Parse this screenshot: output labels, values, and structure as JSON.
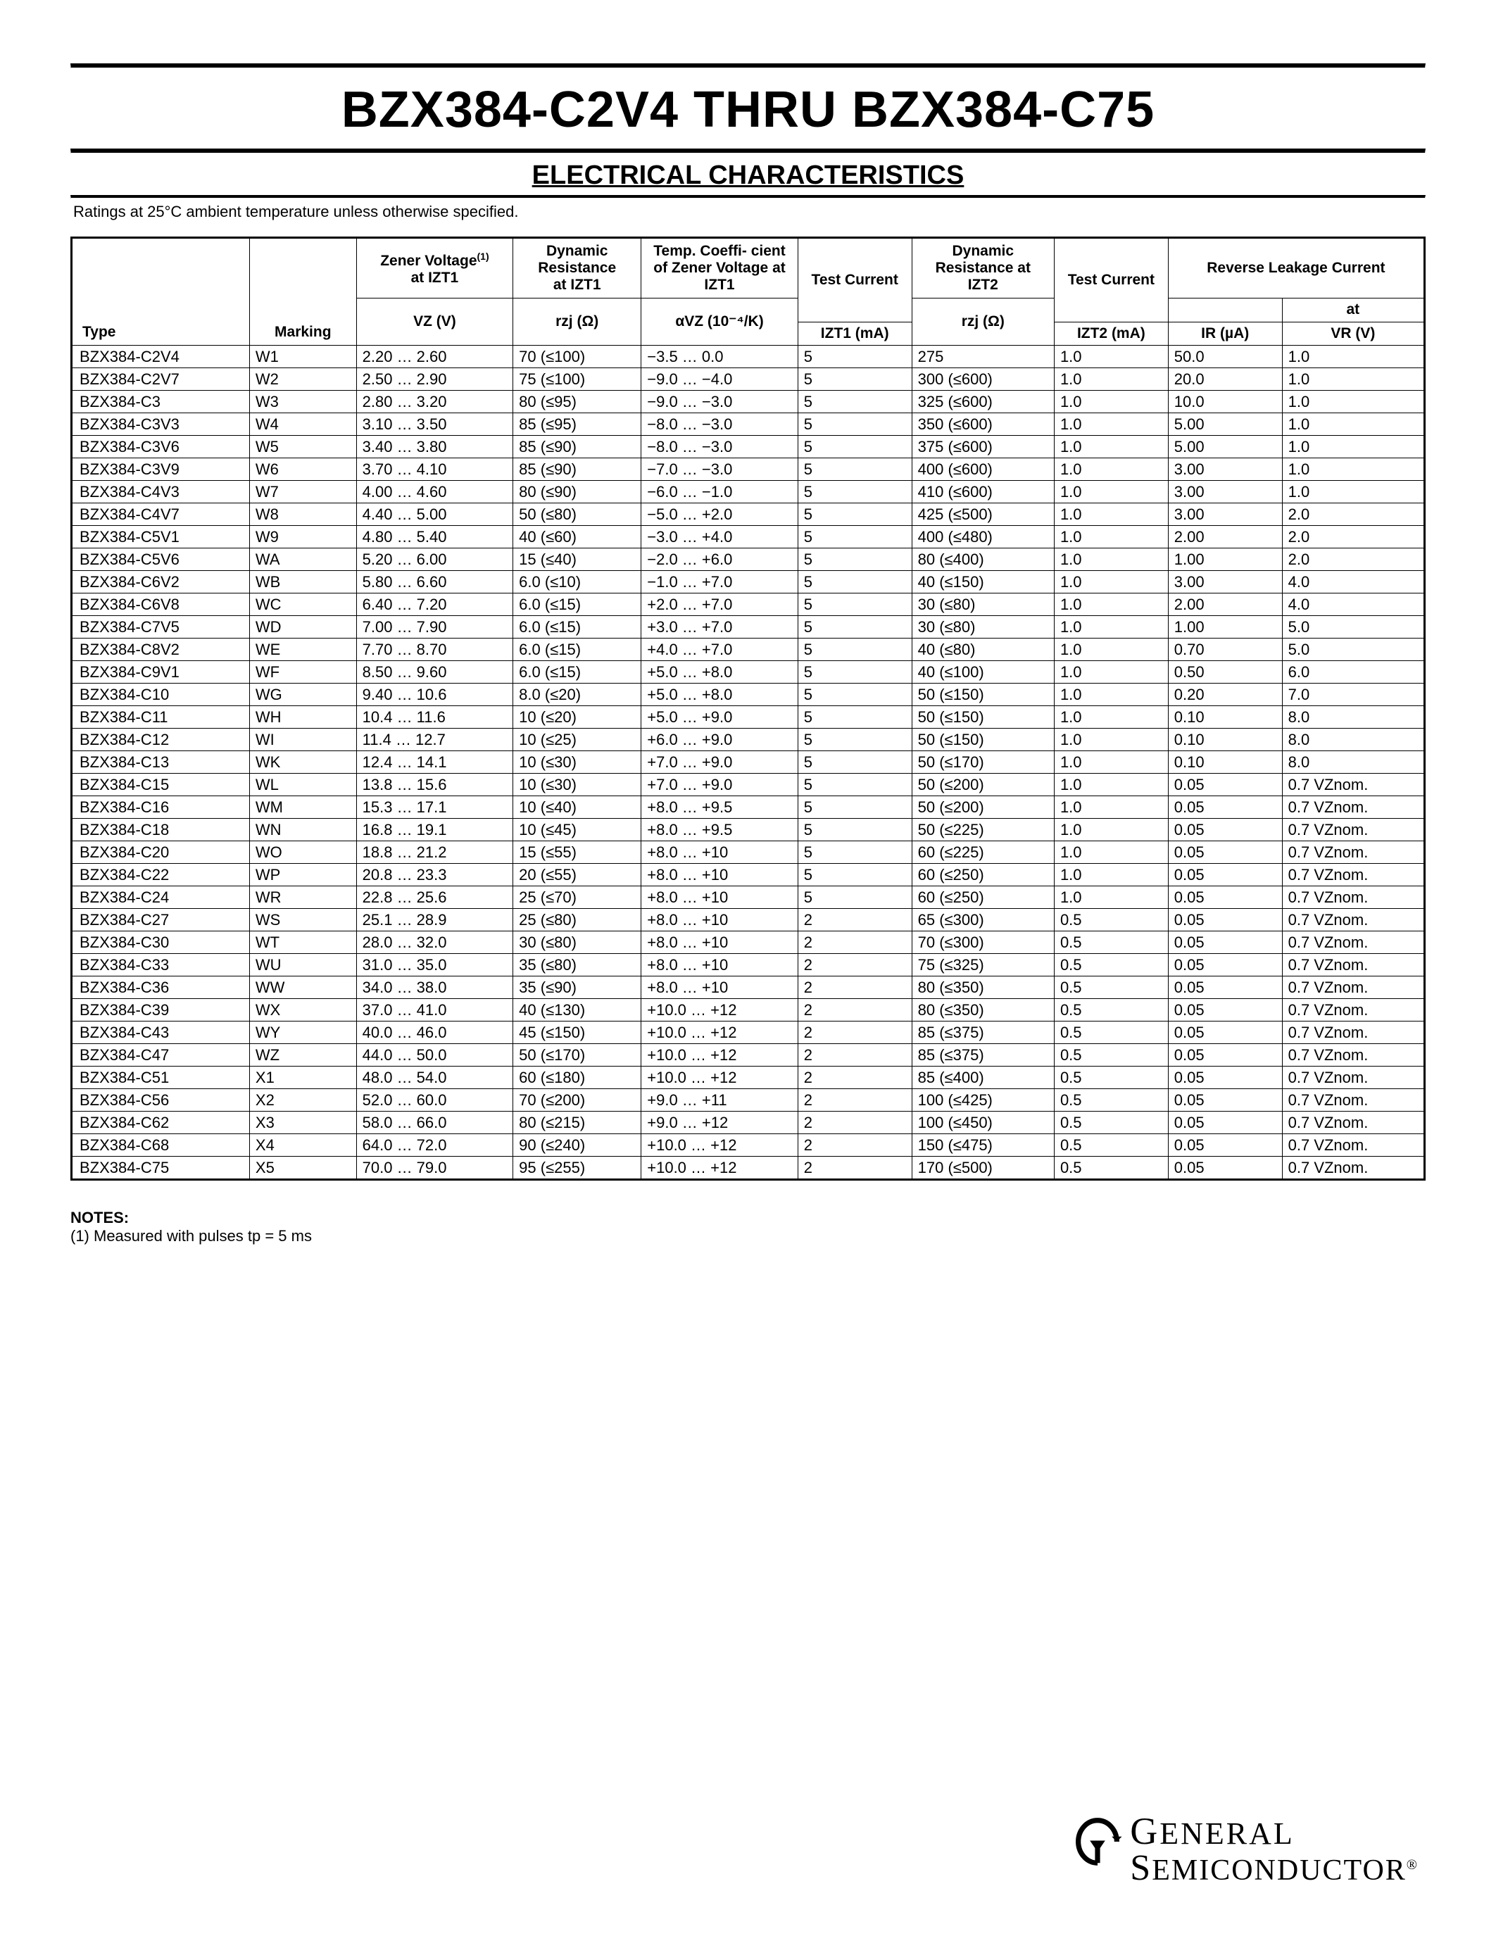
{
  "title": "BZX384-C2V4 THRU BZX384-C75",
  "subtitle": "ELECTRICAL CHARACTERISTICS",
  "ratings_note": "Ratings at 25°C ambient temperature unless otherwise specified.",
  "notes_heading": "NOTES:",
  "note1": "(1) Measured with pulses tp = 5 ms",
  "logo_line1": "General",
  "logo_line2": "Semiconductor",
  "head": {
    "type": "Type",
    "marking": "Marking",
    "vz_top": "Zener Voltage",
    "vz_sup": "(1)",
    "vz_at": "at IZT1",
    "rzj1_top": "Dynamic Resistance",
    "rzj1_at": "at IZT1",
    "avz_top": "Temp. Coeffi-\ncient of Zener Voltage at",
    "avz_at": "IZT1",
    "izt1_top": "Test Current",
    "rzj2_top": "Dynamic Resistance at",
    "rzj2_at": "IZT2",
    "izt2_top": "Test Current",
    "rlc_top": "Reverse Leakage Current",
    "rlc_at": "at",
    "vz_lbl": "VZ (V)",
    "rzj_lbl": "rzj (Ω)",
    "avz_lbl": "αVZ (10⁻⁴/K)",
    "izt1_lbl": "IZT1 (mA)",
    "izt2_lbl": "IZT2 (mA)",
    "ir_lbl": "IR (µA)",
    "vr_lbl": "VR (V)"
  },
  "rows": [
    [
      "BZX384-C2V4",
      "W1",
      "2.20 … 2.60",
      "70 (≤100)",
      "−3.5 … 0.0",
      "5",
      "275",
      "1.0",
      "50.0",
      "1.0"
    ],
    [
      "BZX384-C2V7",
      "W2",
      "2.50 … 2.90",
      "75 (≤100)",
      "−9.0 … −4.0",
      "5",
      "300 (≤600)",
      "1.0",
      "20.0",
      "1.0"
    ],
    [
      "BZX384-C3",
      "W3",
      "2.80 … 3.20",
      "80 (≤95)",
      "−9.0 … −3.0",
      "5",
      "325 (≤600)",
      "1.0",
      "10.0",
      "1.0"
    ],
    [
      "BZX384-C3V3",
      "W4",
      "3.10 … 3.50",
      "85 (≤95)",
      "−8.0 … −3.0",
      "5",
      "350 (≤600)",
      "1.0",
      "5.00",
      "1.0"
    ],
    [
      "BZX384-C3V6",
      "W5",
      "3.40 … 3.80",
      "85 (≤90)",
      "−8.0 … −3.0",
      "5",
      "375 (≤600)",
      "1.0",
      "5.00",
      "1.0"
    ],
    [
      "BZX384-C3V9",
      "W6",
      "3.70 … 4.10",
      "85 (≤90)",
      "−7.0 … −3.0",
      "5",
      "400 (≤600)",
      "1.0",
      "3.00",
      "1.0"
    ],
    [
      "BZX384-C4V3",
      "W7",
      "4.00 … 4.60",
      "80 (≤90)",
      "−6.0 … −1.0",
      "5",
      "410 (≤600)",
      "1.0",
      "3.00",
      "1.0"
    ],
    [
      "BZX384-C4V7",
      "W8",
      "4.40 … 5.00",
      "50 (≤80)",
      "−5.0 … +2.0",
      "5",
      "425 (≤500)",
      "1.0",
      "3.00",
      "2.0"
    ],
    [
      "BZX384-C5V1",
      "W9",
      "4.80 … 5.40",
      "40 (≤60)",
      "−3.0 … +4.0",
      "5",
      "400 (≤480)",
      "1.0",
      "2.00",
      "2.0"
    ],
    [
      "BZX384-C5V6",
      "WA",
      "5.20 … 6.00",
      "15 (≤40)",
      "−2.0 … +6.0",
      "5",
      "80 (≤400)",
      "1.0",
      "1.00",
      "2.0"
    ],
    [
      "BZX384-C6V2",
      "WB",
      "5.80 … 6.60",
      "6.0 (≤10)",
      "−1.0 … +7.0",
      "5",
      "40 (≤150)",
      "1.0",
      "3.00",
      "4.0"
    ],
    [
      "BZX384-C6V8",
      "WC",
      "6.40 … 7.20",
      "6.0 (≤15)",
      "+2.0 … +7.0",
      "5",
      "30 (≤80)",
      "1.0",
      "2.00",
      "4.0"
    ],
    [
      "BZX384-C7V5",
      "WD",
      "7.00 … 7.90",
      "6.0 (≤15)",
      "+3.0 … +7.0",
      "5",
      "30 (≤80)",
      "1.0",
      "1.00",
      "5.0"
    ],
    [
      "BZX384-C8V2",
      "WE",
      "7.70 … 8.70",
      "6.0 (≤15)",
      "+4.0 … +7.0",
      "5",
      "40 (≤80)",
      "1.0",
      "0.70",
      "5.0"
    ],
    [
      "BZX384-C9V1",
      "WF",
      "8.50 … 9.60",
      "6.0 (≤15)",
      "+5.0 … +8.0",
      "5",
      "40 (≤100)",
      "1.0",
      "0.50",
      "6.0"
    ],
    [
      "BZX384-C10",
      "WG",
      "9.40 … 10.6",
      "8.0 (≤20)",
      "+5.0 … +8.0",
      "5",
      "50 (≤150)",
      "1.0",
      "0.20",
      "7.0"
    ],
    [
      "BZX384-C11",
      "WH",
      "10.4 … 11.6",
      "10 (≤20)",
      "+5.0 … +9.0",
      "5",
      "50 (≤150)",
      "1.0",
      "0.10",
      "8.0"
    ],
    [
      "BZX384-C12",
      "WI",
      "11.4 … 12.7",
      "10 (≤25)",
      "+6.0 … +9.0",
      "5",
      "50 (≤150)",
      "1.0",
      "0.10",
      "8.0"
    ],
    [
      "BZX384-C13",
      "WK",
      "12.4 … 14.1",
      "10 (≤30)",
      "+7.0 … +9.0",
      "5",
      "50 (≤170)",
      "1.0",
      "0.10",
      "8.0"
    ],
    [
      "BZX384-C15",
      "WL",
      "13.8 … 15.6",
      "10 (≤30)",
      "+7.0 … +9.0",
      "5",
      "50 (≤200)",
      "1.0",
      "0.05",
      "0.7 VZnom."
    ],
    [
      "BZX384-C16",
      "WM",
      "15.3 … 17.1",
      "10 (≤40)",
      "+8.0 … +9.5",
      "5",
      "50 (≤200)",
      "1.0",
      "0.05",
      "0.7 VZnom."
    ],
    [
      "BZX384-C18",
      "WN",
      "16.8 … 19.1",
      "10 (≤45)",
      "+8.0 … +9.5",
      "5",
      "50 (≤225)",
      "1.0",
      "0.05",
      "0.7 VZnom."
    ],
    [
      "BZX384-C20",
      "WO",
      "18.8 … 21.2",
      "15 (≤55)",
      "+8.0 … +10",
      "5",
      "60 (≤225)",
      "1.0",
      "0.05",
      "0.7 VZnom."
    ],
    [
      "BZX384-C22",
      "WP",
      "20.8 … 23.3",
      "20 (≤55)",
      "+8.0 … +10",
      "5",
      "60 (≤250)",
      "1.0",
      "0.05",
      "0.7 VZnom."
    ],
    [
      "BZX384-C24",
      "WR",
      "22.8 … 25.6",
      "25 (≤70)",
      "+8.0 … +10",
      "5",
      "60 (≤250)",
      "1.0",
      "0.05",
      "0.7 VZnom."
    ],
    [
      "BZX384-C27",
      "WS",
      "25.1 … 28.9",
      "25 (≤80)",
      "+8.0 … +10",
      "2",
      "65 (≤300)",
      "0.5",
      "0.05",
      "0.7 VZnom."
    ],
    [
      "BZX384-C30",
      "WT",
      "28.0 … 32.0",
      "30 (≤80)",
      "+8.0 … +10",
      "2",
      "70 (≤300)",
      "0.5",
      "0.05",
      "0.7 VZnom."
    ],
    [
      "BZX384-C33",
      "WU",
      "31.0 … 35.0",
      "35 (≤80)",
      "+8.0 … +10",
      "2",
      "75 (≤325)",
      "0.5",
      "0.05",
      "0.7 VZnom."
    ],
    [
      "BZX384-C36",
      "WW",
      "34.0 … 38.0",
      "35 (≤90)",
      "+8.0 … +10",
      "2",
      "80 (≤350)",
      "0.5",
      "0.05",
      "0.7 VZnom."
    ],
    [
      "BZX384-C39",
      "WX",
      "37.0 … 41.0",
      "40 (≤130)",
      "+10.0 … +12",
      "2",
      "80 (≤350)",
      "0.5",
      "0.05",
      "0.7 VZnom."
    ],
    [
      "BZX384-C43",
      "WY",
      "40.0 … 46.0",
      "45 (≤150)",
      "+10.0 … +12",
      "2",
      "85 (≤375)",
      "0.5",
      "0.05",
      "0.7 VZnom."
    ],
    [
      "BZX384-C47",
      "WZ",
      "44.0 … 50.0",
      "50 (≤170)",
      "+10.0 … +12",
      "2",
      "85 (≤375)",
      "0.5",
      "0.05",
      "0.7 VZnom."
    ],
    [
      "BZX384-C51",
      "X1",
      "48.0 … 54.0",
      "60 (≤180)",
      "+10.0 … +12",
      "2",
      "85 (≤400)",
      "0.5",
      "0.05",
      "0.7 VZnom."
    ],
    [
      "BZX384-C56",
      "X2",
      "52.0 … 60.0",
      "70 (≤200)",
      "+9.0 … +11",
      "2",
      "100 (≤425)",
      "0.5",
      "0.05",
      "0.7 VZnom."
    ],
    [
      "BZX384-C62",
      "X3",
      "58.0 … 66.0",
      "80 (≤215)",
      "+9.0 … +12",
      "2",
      "100 (≤450)",
      "0.5",
      "0.05",
      "0.7 VZnom."
    ],
    [
      "BZX384-C68",
      "X4",
      "64.0 … 72.0",
      "90 (≤240)",
      "+10.0 … +12",
      "2",
      "150 (≤475)",
      "0.5",
      "0.05",
      "0.7 VZnom."
    ],
    [
      "BZX384-C75",
      "X5",
      "70.0 … 79.0",
      "95 (≤255)",
      "+10.0 … +12",
      "2",
      "170 (≤500)",
      "0.5",
      "0.05",
      "0.7 VZnom."
    ]
  ]
}
